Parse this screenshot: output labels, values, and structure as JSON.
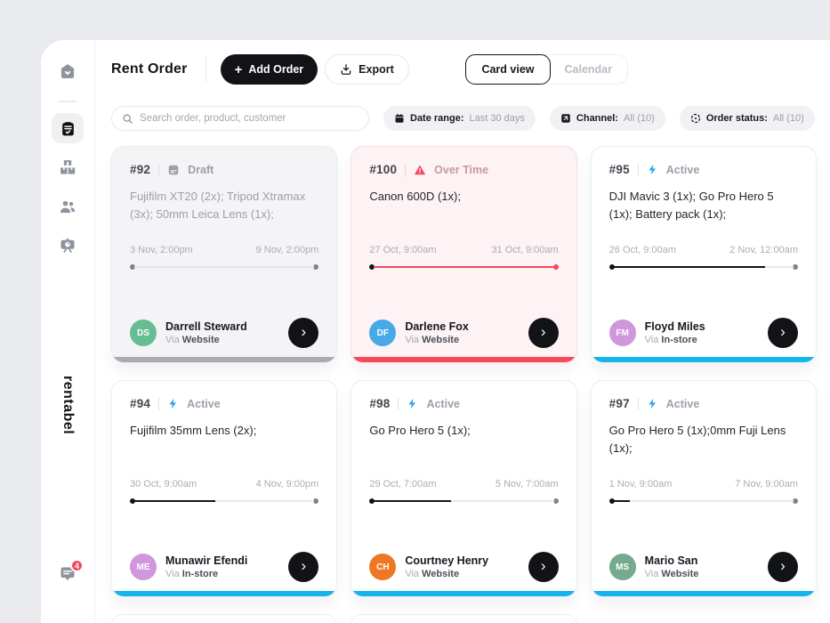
{
  "brand": "rentabel",
  "sidebar": {
    "items": [
      {
        "icon": "home-icon"
      },
      {
        "icon": "orders-clipboard-icon",
        "active": true
      },
      {
        "icon": "inventory-boxes-icon"
      },
      {
        "icon": "customers-icon"
      },
      {
        "icon": "reports-presentation-icon"
      }
    ],
    "messages_badge": "4"
  },
  "header": {
    "title": "Rent Order",
    "add_order_label": "Add Order",
    "export_label": "Export",
    "view_toggle": {
      "card": "Card view",
      "calendar": "Calendar"
    }
  },
  "filters": {
    "search_placeholder": "Search order, product, customer",
    "chips": [
      {
        "icon": "calendar-icon",
        "label": "Date range:",
        "value": "Last 30 days"
      },
      {
        "icon": "channel-icon",
        "label": "Channel:",
        "value": "All (10)"
      },
      {
        "icon": "order-status-icon",
        "label": "Order status:",
        "value": "All (10)"
      }
    ]
  },
  "via_prefix": "Via",
  "colors": {
    "active_accent": "#14b4ed",
    "overtime_accent": "#f8485e",
    "draft_accent": "#aaabb2",
    "bolt_blue": "#2da3f5"
  },
  "cards": [
    {
      "id": "#92",
      "status": "Draft",
      "status_type": "draft",
      "products": "Fujifilm XT20 (2x); Tripod Xtramax (3x); 50mm Leica Lens (1x);",
      "start": "3 Nov, 2:00pm",
      "end": "9 Nov, 2:00pm",
      "progress": 0,
      "customer": {
        "initials": "DS",
        "name": "Darrell Steward",
        "channel": "Website",
        "color": "#66bd92"
      },
      "accent": "#aaabb2"
    },
    {
      "id": "#100",
      "status": "Over Time",
      "status_type": "overtime",
      "products": "Canon 600D (1x);",
      "start": "27 Oct, 9:00am",
      "end": "31 Oct, 9:00am",
      "progress": 100,
      "customer": {
        "initials": "DF",
        "name": "Darlene Fox",
        "channel": "Website",
        "color": "#47aae7"
      },
      "accent": "#f8485e"
    },
    {
      "id": "#95",
      "status": "Active",
      "status_type": "active",
      "products": "DJI Mavic 3 (1x); Go Pro Hero 5 (1x); Battery pack (1x);",
      "start": "26 Oct, 9:00am",
      "end": "2 Nov, 12:00am",
      "progress": 84,
      "customer": {
        "initials": "FM",
        "name": "Floyd Miles",
        "channel": "In-store",
        "color": "#cf98dc"
      },
      "accent": "#14b4ed"
    },
    {
      "id": "#94",
      "status": "Active",
      "status_type": "active",
      "products": "Fujifilm 35mm Lens (2x);",
      "start": "30 Oct, 9:00am",
      "end": "4 Nov, 9:00pm",
      "progress": 45,
      "customer": {
        "initials": "ME",
        "name": "Munawir Efendi",
        "channel": "In-store",
        "color": "#cf98dc"
      },
      "accent": "#14b4ed"
    },
    {
      "id": "#98",
      "status": "Active",
      "status_type": "active",
      "products": "Go Pro Hero 5 (1x);",
      "start": "29 Oct, 7:00am",
      "end": "5 Nov, 7:00am",
      "progress": 43,
      "customer": {
        "initials": "CH",
        "name": "Courtney Henry",
        "channel": "Website",
        "color": "#ef7723"
      },
      "accent": "#14b4ed"
    },
    {
      "id": "#97",
      "status": "Active",
      "status_type": "active",
      "products": "Go Pro Hero 5 (1x);0mm Fuji Lens (1x);",
      "start": "1 Nov, 9:00am",
      "end": "7 Nov, 9:00am",
      "progress": 9,
      "customer": {
        "initials": "MS",
        "name": "Mario San",
        "channel": "Website",
        "color": "#74aa8e"
      },
      "accent": "#14b4ed"
    }
  ]
}
